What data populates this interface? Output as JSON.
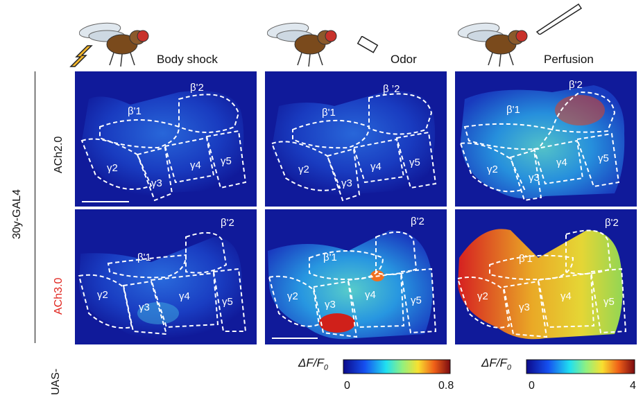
{
  "conditions": [
    "Body shock",
    "Odor",
    "Perfusion"
  ],
  "rows": [
    {
      "label": "ACh2.0",
      "color": "#111111"
    },
    {
      "label": "ACh3.0",
      "color": "#e0261f"
    }
  ],
  "side_labels": {
    "top": "30y-GAL4",
    "bottom": "UAS-"
  },
  "regions": [
    "β'1",
    "β'2",
    "γ2",
    "γ3",
    "γ4",
    "γ5"
  ],
  "region_labels_alt": {
    "b2_spaced": "β ’2"
  },
  "colorbars": [
    {
      "label_main": "ΔF/F",
      "label_sub": "0",
      "min": "0",
      "max": "0.8"
    },
    {
      "label_main": "ΔF/F",
      "label_sub": "0",
      "min": "0",
      "max": "4"
    }
  ],
  "colors": {
    "background_blue": "#101a9a",
    "outline": "#ffffff"
  },
  "icons": [
    "fly-icon",
    "shock-bolt-icon",
    "odor-tube-icon",
    "pipette-icon"
  ]
}
